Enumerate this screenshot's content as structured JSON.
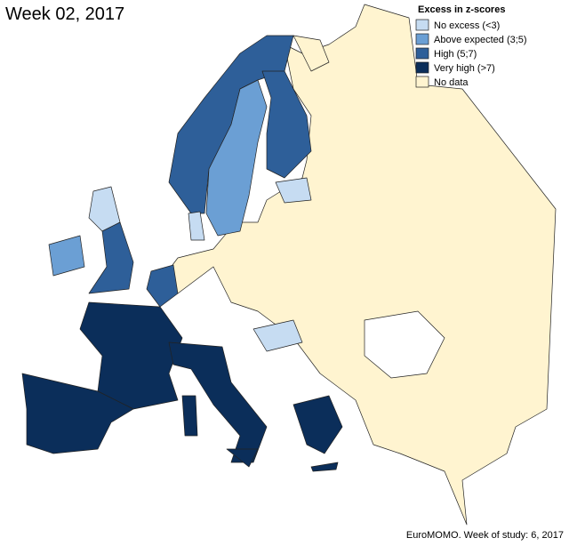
{
  "title": "Week 02, 2017",
  "legend": {
    "title": "Excess in z-scores",
    "items": [
      {
        "label": "No excess (<3)",
        "color": "#c6dcf2"
      },
      {
        "label": "Above expected (3;5)",
        "color": "#6b9fd4"
      },
      {
        "label": "High (5;7)",
        "color": "#2e5f99"
      },
      {
        "label": "Very high (>7)",
        "color": "#0b2e5a"
      },
      {
        "label": "No data",
        "color": "#fff4d0"
      }
    ]
  },
  "footer": "EuroMOMO. Week of study: 6, 2017"
}
